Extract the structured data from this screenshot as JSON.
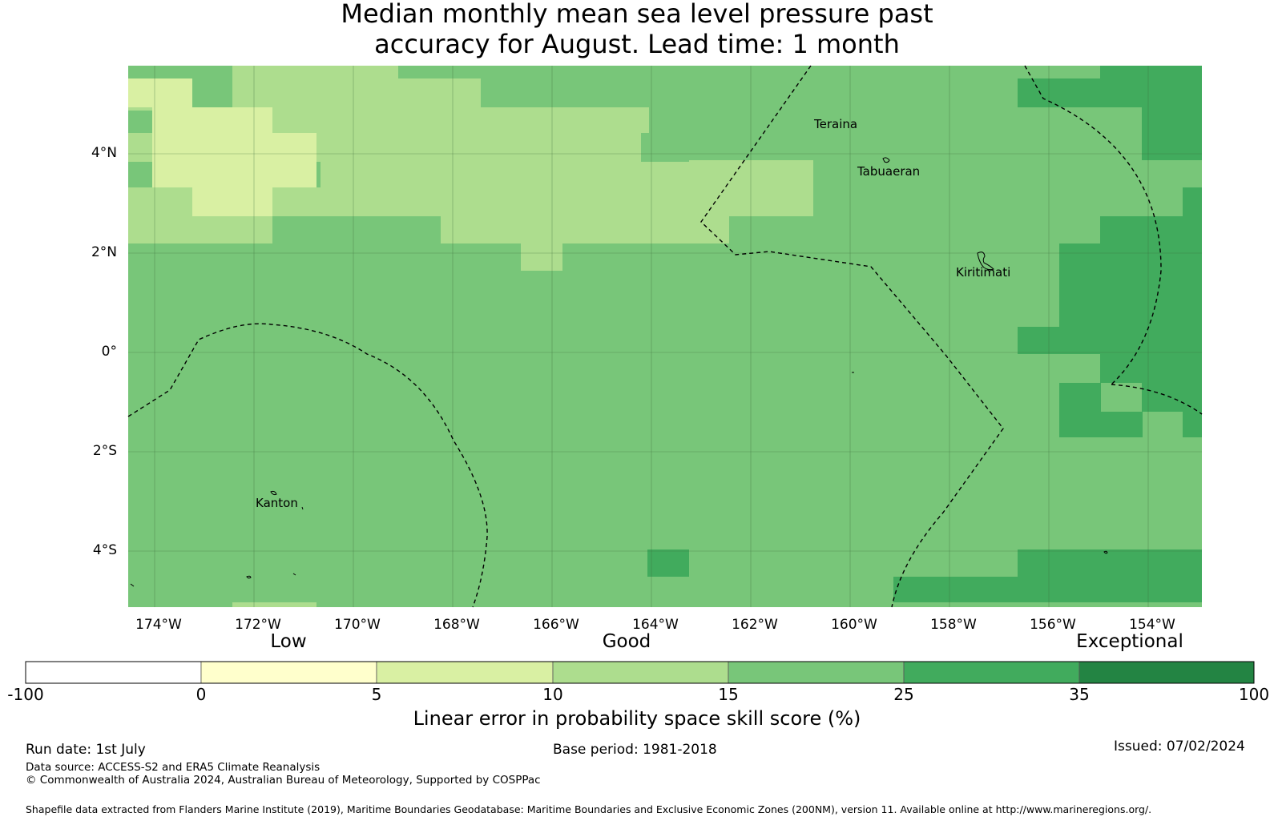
{
  "title_line1": "Median monthly mean sea level pressure past",
  "title_line2": "accuracy for August. Lead time: 1 month",
  "map": {
    "lat_labels": [
      "4°N",
      "2°N",
      "0°",
      "2°S",
      "4°S"
    ],
    "lon_labels": [
      "174°W",
      "172°W",
      "170°W",
      "168°W",
      "166°W",
      "164°W",
      "162°W",
      "160°W",
      "158°W",
      "156°W",
      "154°W"
    ],
    "places": [
      "Teraina",
      "Tabuaeran",
      "Kiritimati",
      "Kanton"
    ],
    "colors": {
      "band_0_5": "#ffffcc",
      "band_5_10": "#d9f0a3",
      "band_10_15": "#addd8e",
      "band_15_25": "#78c679",
      "band_25_35": "#41ab5d",
      "band_35_100": "#238443",
      "grid": "#3a6a3a",
      "eez": "#000000"
    }
  },
  "colorbar": {
    "category_low": "Low",
    "category_good": "Good",
    "category_exceptional": "Exceptional",
    "ticks": [
      "-100",
      "0",
      "5",
      "10",
      "15",
      "25",
      "35",
      "100"
    ],
    "colors": [
      "#ffffff",
      "#ffffcc",
      "#d9f0a3",
      "#addd8e",
      "#78c679",
      "#41ab5d",
      "#238443"
    ],
    "label": "Linear error in probability space skill score (%)"
  },
  "footer": {
    "run_date": "Run date: 1st July",
    "base_period": "Base period: 1981-2018",
    "issued": "Issued: 07/02/2024",
    "data_source": "Data source: ACCESS-S2 and ERA5 Climate Reanalysis",
    "copyright": "© Commonwealth of Australia 2024, Australian Bureau of Meteorology, Supported by COSPPac",
    "shapefile": "Shapefile data extracted from Flanders Marine Institute (2019), Maritime Boundaries Geodatabase: Maritime Boundaries and Exclusive Economic Zones (200NM), version 11. Available online at http://www.marineregions.org/."
  }
}
